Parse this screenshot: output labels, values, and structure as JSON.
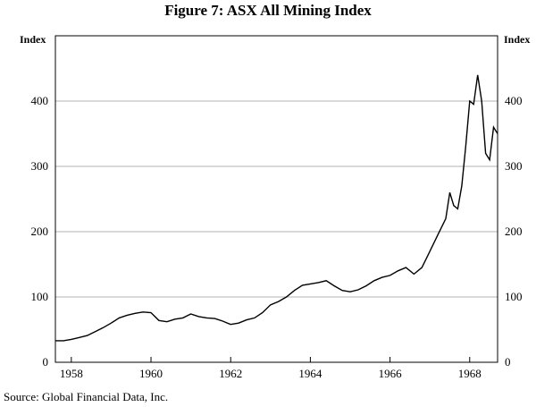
{
  "chart_data": {
    "type": "line",
    "title": "Figure 7: ASX All Mining Index",
    "ylabel_left": "Index",
    "ylabel_right": "Index",
    "ylim": [
      0,
      500
    ],
    "yticks": [
      0,
      100,
      200,
      300,
      400
    ],
    "xlim": [
      1957.6,
      1968.7
    ],
    "xticks": [
      1958,
      1960,
      1962,
      1964,
      1966,
      1968
    ],
    "grid": true,
    "series": [
      {
        "name": "ASX All Mining Index",
        "x": [
          1957.6,
          1957.8,
          1958.0,
          1958.2,
          1958.4,
          1958.6,
          1958.8,
          1959.0,
          1959.2,
          1959.4,
          1959.6,
          1959.8,
          1960.0,
          1960.2,
          1960.4,
          1960.6,
          1960.8,
          1961.0,
          1961.2,
          1961.4,
          1961.6,
          1961.8,
          1962.0,
          1962.2,
          1962.4,
          1962.6,
          1962.8,
          1963.0,
          1963.2,
          1963.4,
          1963.6,
          1963.8,
          1964.0,
          1964.2,
          1964.4,
          1964.6,
          1964.8,
          1965.0,
          1965.2,
          1965.4,
          1965.6,
          1965.8,
          1966.0,
          1966.2,
          1966.4,
          1966.6,
          1966.8,
          1967.0,
          1967.2,
          1967.4,
          1967.5,
          1967.6,
          1967.7,
          1967.8,
          1967.9,
          1968.0,
          1968.1,
          1968.2,
          1968.3,
          1968.4,
          1968.5,
          1968.6,
          1968.7
        ],
        "values": [
          33,
          33,
          35,
          38,
          41,
          47,
          53,
          60,
          68,
          72,
          75,
          77,
          76,
          64,
          62,
          66,
          68,
          74,
          70,
          68,
          67,
          63,
          58,
          60,
          65,
          68,
          76,
          88,
          93,
          100,
          110,
          118,
          120,
          122,
          125,
          117,
          110,
          108,
          111,
          117,
          125,
          130,
          133,
          140,
          145,
          135,
          145,
          170,
          195,
          220,
          260,
          240,
          235,
          270,
          330,
          400,
          395,
          440,
          400,
          320,
          310,
          360,
          350
        ]
      }
    ]
  },
  "source": "Source: Global Financial Data, Inc."
}
